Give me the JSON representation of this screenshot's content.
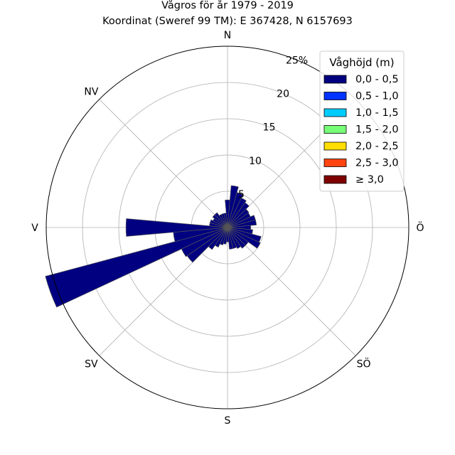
{
  "chart_data": {
    "type": "polar-bar",
    "title": "Vågros för år 1979 - 2019",
    "subtitle": "Koordinat (Sweref 99 TM): E 367428, N 6157693",
    "directions": [
      {
        "label": "N",
        "angle": 0
      },
      {
        "label": "Ö",
        "angle": 90
      },
      {
        "label": "S",
        "angle": 180
      },
      {
        "label": "V",
        "angle": 270
      },
      {
        "label": "NV",
        "angle": 315
      },
      {
        "label": "SV",
        "angle": 225
      },
      {
        "label": "SÖ",
        "angle": 135
      }
    ],
    "radial_ticks": [
      {
        "value": 5,
        "label": "5"
      },
      {
        "value": 10,
        "label": "10"
      },
      {
        "value": 15,
        "label": "15"
      },
      {
        "value": 20,
        "label": "20"
      },
      {
        "value": 25,
        "label": "25%"
      }
    ],
    "rmax": 25,
    "sector_width_deg": 10,
    "angles": [
      0,
      10,
      20,
      30,
      40,
      50,
      60,
      70,
      80,
      90,
      100,
      110,
      120,
      130,
      140,
      150,
      160,
      170,
      180,
      190,
      200,
      210,
      220,
      230,
      240,
      250,
      260,
      270,
      280,
      290,
      300,
      310,
      320,
      330,
      340,
      350
    ],
    "series": [
      {
        "name": "0,0 - 0,5",
        "color": "#000080",
        "values": [
          3.8,
          5.8,
          5.0,
          4.5,
          4.2,
          3.6,
          3.5,
          4.0,
          4.0,
          3.2,
          3.5,
          4.8,
          5.0,
          3.5,
          3.5,
          3.2,
          3.0,
          3.0,
          2.0,
          2.3,
          2.5,
          3.0,
          3.7,
          6.8,
          7.0,
          26.0,
          7.5,
          14.0,
          2.5,
          2.5,
          2.2,
          2.5,
          2.5,
          2.0,
          2.0,
          2.0
        ]
      },
      {
        "name": "0,5 - 1,0",
        "color": "#0033ff",
        "values": []
      },
      {
        "name": "1,0 - 1,5",
        "color": "#00ccff",
        "values": []
      },
      {
        "name": "1,5 - 2,0",
        "color": "#77ff77",
        "values": []
      },
      {
        "name": "2,0 - 2,5",
        "color": "#ffdd00",
        "values": []
      },
      {
        "name": "2,5 - 3,0",
        "color": "#ff4411",
        "values": []
      },
      {
        "name": "≥ 3,0",
        "color": "#7f0000",
        "values": []
      }
    ],
    "legend": {
      "title": "Våghöjd (m)",
      "placement": "top-right"
    },
    "grid": true
  }
}
